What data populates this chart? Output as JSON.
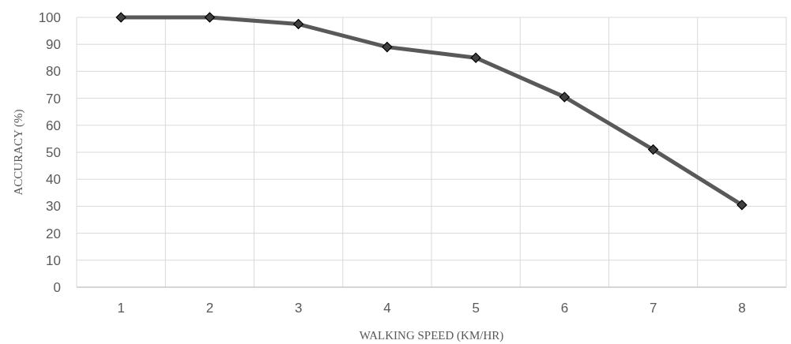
{
  "chart_data": {
    "type": "line",
    "xlabel": "WALKING SPEED (KM/HR)",
    "ylabel": "ACCURACY (%)",
    "categories": [
      "1",
      "2",
      "3",
      "4",
      "5",
      "6",
      "7",
      "8"
    ],
    "series": [
      {
        "color": "#595959",
        "values": [
          100,
          100,
          97.5,
          89,
          85,
          70.5,
          51,
          30.5
        ]
      }
    ],
    "ylim": [
      0,
      100
    ],
    "yticks": [
      0,
      10,
      20,
      30,
      40,
      50,
      60,
      70,
      80,
      90,
      100
    ],
    "grid": true,
    "marker": "diamond",
    "line_style": "solid"
  }
}
